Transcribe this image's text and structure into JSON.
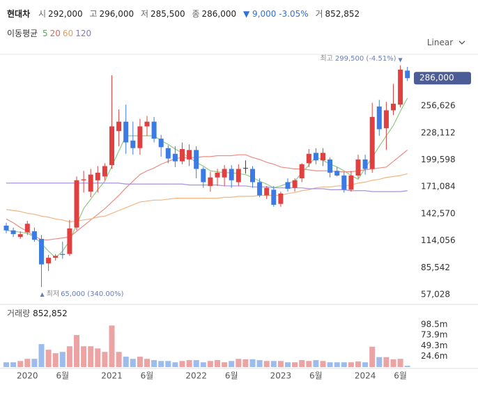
{
  "header": {
    "name": "현대차",
    "items": [
      {
        "label": "시",
        "value": "292,000"
      },
      {
        "label": "고",
        "value": "296,000"
      },
      {
        "label": "저",
        "value": "285,500"
      },
      {
        "label": "종",
        "value": "286,000"
      }
    ],
    "change_arrow": "▼",
    "change": "9,000",
    "change_pct": "-3.05%",
    "volume_label": "거",
    "volume": "852,852",
    "ma_title": "이동평균",
    "scale_mode": "Linear"
  },
  "chart_data": {
    "type": "candlestick",
    "categories": [
      null,
      null,
      null,
      "2020",
      null,
      null,
      null,
      null,
      "6월",
      null,
      null,
      null,
      null,
      null,
      null,
      "2021",
      null,
      null,
      null,
      null,
      "6월",
      null,
      null,
      null,
      null,
      null,
      null,
      "2022",
      null,
      null,
      null,
      null,
      "6월",
      null,
      null,
      null,
      null,
      null,
      null,
      "2023",
      null,
      null,
      null,
      null,
      "6월",
      null,
      null,
      null,
      null,
      null,
      null,
      "2024",
      null,
      null,
      null,
      null,
      "6월",
      null
    ],
    "open": [
      130000,
      125000,
      118000,
      123000,
      124000,
      116000,
      90000,
      96000,
      100000,
      100000,
      128000,
      178000,
      166000,
      178000,
      182000,
      194000,
      230000,
      240000,
      220000,
      212000,
      235000,
      240000,
      222000,
      212000,
      206000,
      198000,
      200000,
      210000,
      190000,
      172000,
      181000,
      181000,
      190000,
      176000,
      191000,
      190000,
      176000,
      162000,
      168000,
      153000,
      176000,
      170000,
      180000,
      196000,
      207000,
      199000,
      200000,
      188000,
      183000,
      168000,
      183000,
      200000,
      190000,
      256000,
      233000,
      252000,
      258000,
      294000
    ],
    "high": [
      133000,
      128000,
      124000,
      135000,
      128000,
      120000,
      99000,
      100000,
      113000,
      136000,
      182000,
      188000,
      190000,
      193000,
      196000,
      289000,
      253000,
      258000,
      240000,
      243000,
      246000,
      245000,
      226000,
      215000,
      214000,
      218000,
      216000,
      214000,
      192000,
      187000,
      190000,
      194000,
      194000,
      195000,
      199000,
      193000,
      180000,
      172000,
      172000,
      166000,
      180000,
      180000,
      196000,
      211000,
      212000,
      212000,
      202000,
      192000,
      187000,
      188000,
      205000,
      205000,
      260000,
      263000,
      261000,
      280000,
      299500,
      298000
    ],
    "low": [
      122000,
      118000,
      116000,
      120000,
      113000,
      65000,
      82000,
      93000,
      95000,
      98000,
      125000,
      165000,
      160000,
      165000,
      178000,
      190000,
      214000,
      206000,
      205000,
      205000,
      225000,
      218000,
      203000,
      196000,
      192000,
      195000,
      193000,
      180000,
      170000,
      166000,
      172000,
      172000,
      170000,
      172000,
      185000,
      170000,
      160000,
      158000,
      150000,
      150000,
      166000,
      166000,
      176000,
      192000,
      195000,
      193000,
      181000,
      182000,
      165000,
      166000,
      180000,
      184000,
      186000,
      225000,
      210000,
      247000,
      255000,
      283000
    ],
    "close": [
      125000,
      121000,
      121000,
      132000,
      115000,
      89000,
      96000,
      98000,
      99000,
      127000,
      178000,
      179000,
      184000,
      186000,
      193000,
      235000,
      240000,
      218000,
      212000,
      235000,
      240000,
      222000,
      213000,
      201000,
      198000,
      211000,
      210000,
      190000,
      176000,
      181000,
      186000,
      190000,
      178000,
      190000,
      191000,
      176000,
      162000,
      170000,
      152000,
      164000,
      169000,
      178000,
      195000,
      206000,
      199000,
      207000,
      186000,
      183000,
      168000,
      183000,
      200000,
      190000,
      245000,
      232000,
      252000,
      259000,
      295000,
      286000
    ],
    "up_color": "#e0403f",
    "down_color": "#3b7be3",
    "ylim": [
      46713,
      309750
    ],
    "yticks": [
      {
        "value": 57028,
        "label": "57,028"
      },
      {
        "value": 85542,
        "label": "85,542"
      },
      {
        "value": 114056,
        "label": "114,056"
      },
      {
        "value": 142570,
        "label": "142,570"
      },
      {
        "value": 171084,
        "label": "171,084"
      },
      {
        "value": 199598,
        "label": "199,598"
      },
      {
        "value": 228112,
        "label": "228,112"
      },
      {
        "value": 256626,
        "label": "256,626"
      }
    ],
    "grid": false,
    "last_price_label": "286,000",
    "series": [
      {
        "name": "5",
        "color": "#8ccb80",
        "label_color": "#5aa85a",
        "values": [
          125000,
          124000,
          123000,
          122000,
          118000,
          111000,
          103000,
          96000,
          103000,
          114000,
          131000,
          148000,
          158000,
          168000,
          177000,
          193000,
          209000,
          225000,
          225000,
          225000,
          225000,
          225000,
          220000,
          216000,
          211000,
          207000,
          202000,
          197000,
          193000,
          188000,
          187000,
          186000,
          186000,
          185000,
          184000,
          181000,
          177000,
          174000,
          170000,
          172000,
          175000,
          177000,
          186000,
          194000,
          203000,
          199000,
          195000,
          192000,
          188000,
          183000,
          179000,
          191000,
          202000,
          214000,
          225000,
          236000,
          251000,
          265000
        ]
      },
      {
        "name": "20",
        "color": "#eb8d82",
        "label_color": "#e0605a",
        "values": [
          137000,
          133000,
          128000,
          124000,
          119000,
          115000,
          115000,
          116000,
          117000,
          118000,
          124000,
          130000,
          136000,
          142000,
          148000,
          155000,
          162000,
          170000,
          177000,
          184000,
          188000,
          191000,
          195000,
          198000,
          201000,
          202000,
          202000,
          202000,
          203000,
          203000,
          204000,
          204000,
          204000,
          205000,
          205000,
          202000,
          200000,
          197000,
          195000,
          192000,
          191000,
          190000,
          190000,
          189000,
          188000,
          188000,
          188000,
          187000,
          187000,
          187000,
          188000,
          189000,
          190000,
          191000,
          192000,
          198000,
          204000,
          210000
        ]
      },
      {
        "name": "60",
        "color": "#f2b584",
        "label_color": "#e89a50",
        "values": [
          147000,
          146000,
          145000,
          143000,
          142000,
          140000,
          139000,
          137000,
          136000,
          134000,
          135000,
          136000,
          137000,
          139000,
          140000,
          143000,
          146000,
          149000,
          152000,
          155000,
          156000,
          157000,
          157000,
          158000,
          159000,
          159000,
          159000,
          159000,
          159000,
          159000,
          159000,
          160000,
          160000,
          161000,
          161000,
          161000,
          162000,
          162000,
          162000,
          162000,
          164000,
          165000,
          167000,
          168000,
          170000,
          171000,
          171000,
          172000,
          172000,
          173000,
          175000,
          176000,
          178000,
          179000,
          181000,
          182000,
          183000,
          185000
        ]
      },
      {
        "name": "120",
        "color": "#a990e2",
        "label_color": "#8a70d0",
        "values": [
          175000,
          175000,
          175000,
          175000,
          175000,
          175000,
          175000,
          175000,
          175000,
          175000,
          175000,
          175000,
          175000,
          175000,
          175000,
          175000,
          175000,
          174000,
          174000,
          174000,
          174000,
          174000,
          174000,
          174000,
          174000,
          174000,
          173000,
          173000,
          173000,
          173000,
          173000,
          172000,
          172000,
          172000,
          172000,
          171000,
          171000,
          171000,
          170000,
          170000,
          170000,
          170000,
          170000,
          169000,
          169000,
          169000,
          168000,
          168000,
          168000,
          167000,
          167000,
          167000,
          166000,
          166000,
          166000,
          166000,
          166000,
          167000
        ]
      }
    ],
    "annotations": {
      "high": {
        "prefix": "최고",
        "text": "299,500 (-4.51%)",
        "marker": "▼",
        "index": 56
      },
      "low": {
        "prefix": "최저",
        "text": "65,000 (340.00%)",
        "marker": "▲",
        "index": 5
      }
    },
    "volume": {
      "title": "거래량",
      "last_label": "852,852",
      "values": [
        11,
        11,
        14,
        19,
        19,
        53,
        40,
        32,
        35,
        48,
        74,
        48,
        48,
        43,
        35,
        96,
        35,
        24,
        19,
        24,
        19,
        16,
        14,
        14,
        11,
        14,
        16,
        16,
        11,
        14,
        16,
        11,
        14,
        19,
        18,
        18,
        16,
        14,
        14,
        14,
        11,
        11,
        16,
        14,
        16,
        14,
        11,
        11,
        11,
        11,
        13,
        11,
        47,
        23,
        23,
        18,
        19,
        3
      ],
      "up_color": "#eca3a3",
      "down_color": "#9dbcec",
      "ylim": [
        0,
        140
      ],
      "yticks": [
        {
          "value": 24.6,
          "label": "24.6m"
        },
        {
          "value": 49.3,
          "label": "49.3m"
        },
        {
          "value": 73.9,
          "label": "73.9m"
        },
        {
          "value": 98.5,
          "label": "98.5m"
        }
      ]
    }
  }
}
